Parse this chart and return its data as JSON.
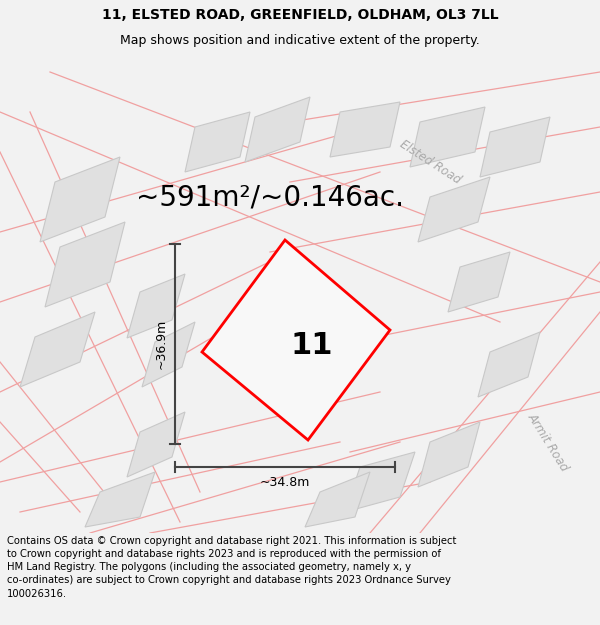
{
  "title_line1": "11, ELSTED ROAD, GREENFIELD, OLDHAM, OL3 7LL",
  "title_line2": "Map shows position and indicative extent of the property.",
  "area_text": "~591m²/~0.146ac.",
  "property_number": "11",
  "dim_height": "~36.9m",
  "dim_width": "~34.8m",
  "road_label_1": "Elsted Road",
  "road_label_2": "Armit Road",
  "footer_text": "Contains OS data © Crown copyright and database right 2021. This information is subject to Crown copyright and database rights 2023 and is reproduced with the permission of HM Land Registry. The polygons (including the associated geometry, namely x, y co-ordinates) are subject to Crown copyright and database rights 2023 Ordnance Survey 100026316.",
  "bg_color": "#f2f2f2",
  "map_bg": "#ffffff",
  "property_edge": "#ff0000",
  "road_line_color": "#f0a0a0",
  "building_fill": "#e0e0e0",
  "building_edge": "#c8c8c8",
  "dim_color": "#444444",
  "title_fontsize": 10,
  "subtitle_fontsize": 9,
  "area_fontsize": 20,
  "footer_fontsize": 7.2,
  "road_label_color": "#aaaaaa"
}
